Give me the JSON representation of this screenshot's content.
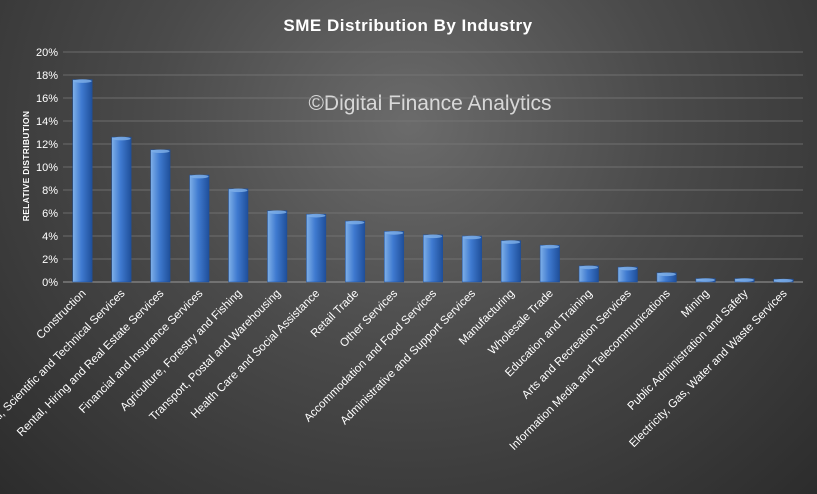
{
  "chart_data": {
    "type": "bar",
    "title": "SME Distribution  By Industry",
    "xlabel": "",
    "ylabel": "RELATIVE DISTRIBUTION",
    "watermark": "©Digital Finance Analytics",
    "ylim": [
      0,
      20
    ],
    "yticks": [
      "0%",
      "2%",
      "4%",
      "6%",
      "8%",
      "10%",
      "12%",
      "14%",
      "16%",
      "18%",
      "20%"
    ],
    "grid": true,
    "categories": [
      "Construction",
      "Professional, Scientific and Technical Services",
      "Rental, Hiring and Real Estate Services",
      "Financial and Insurance Services",
      "Agriculture, Forestry and Fishing",
      "Transport, Postal and Warehousing",
      "Health Care and Social Assistance",
      "Retail Trade",
      "Other Services",
      "Accommodation and Food Services",
      "Administrative and Support Services",
      "Manufacturing",
      "Wholesale Trade",
      "Education and Training",
      "Arts and Recreation Services",
      "Information Media and Telecommunications",
      "Mining",
      "Public Administration and Safety",
      "Electricity, Gas, Water and Waste Services"
    ],
    "values": [
      17.6,
      12.6,
      11.5,
      9.3,
      8.1,
      6.2,
      5.9,
      5.3,
      4.4,
      4.1,
      4.0,
      3.6,
      3.2,
      1.4,
      1.3,
      0.8,
      0.3,
      0.3,
      0.25
    ],
    "colors": {
      "bar_top": "#7fb0e8",
      "bar_main": "#3f7ad0",
      "bar_dark": "#1f4f9a"
    }
  }
}
